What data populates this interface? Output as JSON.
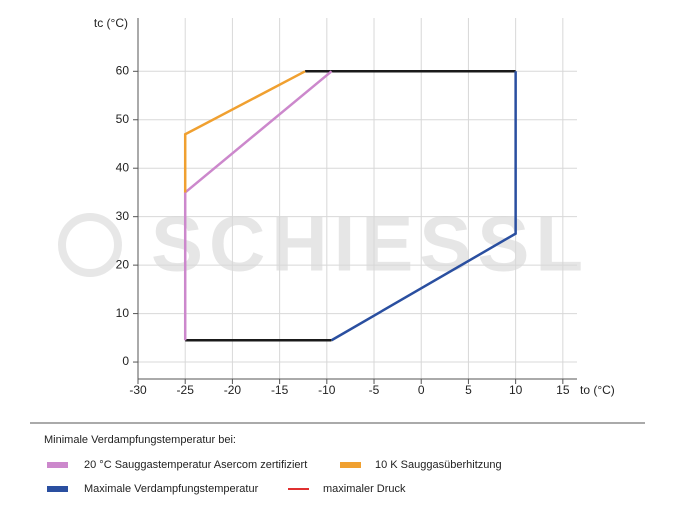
{
  "chart_data": {
    "type": "line",
    "watermark": "SCHIESSL",
    "xlabel": "to (°C)",
    "ylabel": "tc (°C)",
    "xlim": [
      -30,
      16.5
    ],
    "ylim": [
      -3.5,
      71
    ],
    "xticks": [
      -30,
      -25,
      -20,
      -15,
      -10,
      -5,
      0,
      5,
      10,
      15
    ],
    "yticks": [
      0,
      10,
      20,
      30,
      40,
      50,
      60
    ],
    "grid": true,
    "legend_title": "Minimale Verdampfungstemperatur bei:",
    "series": [
      {
        "color": "#1a1a1a",
        "x": [
          -12.3,
          10,
          null,
          -25,
          -9.5
        ],
        "values": [
          60,
          60,
          null,
          4.5,
          4.5
        ]
      },
      {
        "name": "20 °C Sauggastemperatur Asercom zertifiziert",
        "color": "#cc88cc",
        "x": [
          -25,
          -25,
          -9.5
        ],
        "values": [
          4.5,
          35,
          60
        ]
      },
      {
        "name": "10 K Sauggasüberhitzung",
        "color": "#f0a030",
        "x": [
          -25,
          -25,
          -12.3
        ],
        "values": [
          35,
          47,
          60
        ]
      },
      {
        "name": "Maximale Verdampfungstemperatur",
        "color": "#2a4fa0",
        "x": [
          10,
          10,
          -9.5
        ],
        "values": [
          60,
          26.5,
          4.5
        ]
      },
      {
        "name": "maximaler Druck",
        "color": "#e03030",
        "x": [],
        "values": []
      }
    ]
  }
}
